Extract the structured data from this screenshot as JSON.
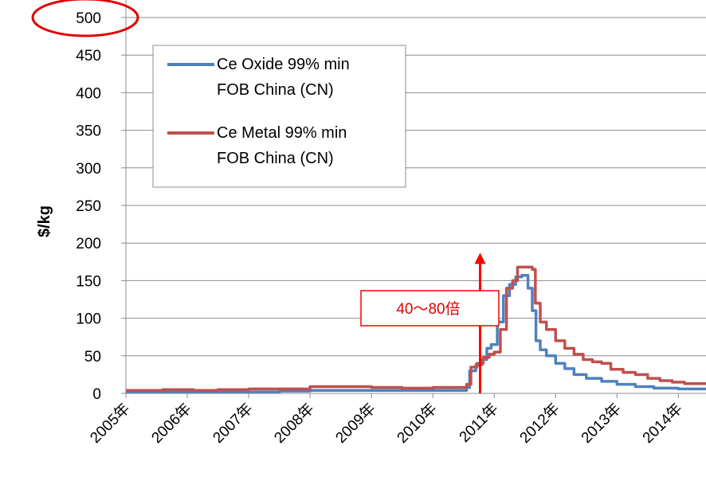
{
  "chart_data": {
    "type": "line",
    "xlabel": "",
    "ylabel": "$/kg",
    "ylim": [
      0,
      500
    ],
    "yticks": [
      "0",
      "50",
      "100",
      "150",
      "200",
      "250",
      "300",
      "350",
      "400",
      "450",
      "500"
    ],
    "xticks": [
      "2005年",
      "2006年",
      "2007年",
      "2008年",
      "2009年",
      "2010年",
      "2011年",
      "2012年",
      "2013年",
      "2014年"
    ],
    "xlim": [
      2005,
      2014.45
    ],
    "grid": "horizontal",
    "legend_position": "top-left",
    "highlight_tick": "500",
    "annotation": {
      "text": "40〜80倍",
      "arrow_x": 2010.77,
      "arrow_from": 0,
      "arrow_to": 185
    },
    "series": [
      {
        "name": "Ce Oxide 99% min\nFOB China (CN)",
        "color": "#4f81bd",
        "x": [
          2005,
          2006.5,
          2007.5,
          2008.0,
          2009.0,
          2010.0,
          2010.55,
          2010.6,
          2010.7,
          2010.8,
          2010.88,
          2010.95,
          2011.05,
          2011.15,
          2011.25,
          2011.35,
          2011.45,
          2011.55,
          2011.62,
          2011.68,
          2011.75,
          2011.85,
          2012.0,
          2012.15,
          2012.3,
          2012.5,
          2012.75,
          2013.0,
          2013.3,
          2013.6,
          2014.0,
          2014.45
        ],
        "y": [
          2,
          2,
          3,
          4,
          4,
          4,
          8,
          30,
          38,
          45,
          60,
          65,
          95,
          130,
          145,
          155,
          157,
          140,
          110,
          70,
          58,
          50,
          40,
          33,
          25,
          20,
          16,
          12,
          9,
          7,
          6,
          5
        ]
      },
      {
        "name": "Ce Metal 99% min\nFOB China (CN)",
        "color": "#c0504d",
        "x": [
          2005,
          2005.6,
          2006.1,
          2006.5,
          2007.0,
          2007.5,
          2008.0,
          2008.5,
          2009.0,
          2009.5,
          2010.0,
          2010.35,
          2010.55,
          2010.62,
          2010.72,
          2010.82,
          2010.92,
          2011.0,
          2011.1,
          2011.2,
          2011.3,
          2011.38,
          2011.5,
          2011.62,
          2011.67,
          2011.75,
          2011.85,
          2012.0,
          2012.15,
          2012.3,
          2012.45,
          2012.6,
          2012.75,
          2012.9,
          2013.1,
          2013.3,
          2013.5,
          2013.7,
          2013.9,
          2014.1,
          2014.45
        ],
        "y": [
          4,
          5,
          4,
          5,
          6,
          6,
          9,
          9,
          8,
          7,
          8,
          8,
          12,
          35,
          40,
          48,
          52,
          55,
          85,
          140,
          150,
          168,
          168,
          165,
          120,
          95,
          85,
          70,
          60,
          52,
          45,
          42,
          40,
          32,
          28,
          25,
          20,
          17,
          15,
          13,
          12
        ]
      }
    ]
  }
}
